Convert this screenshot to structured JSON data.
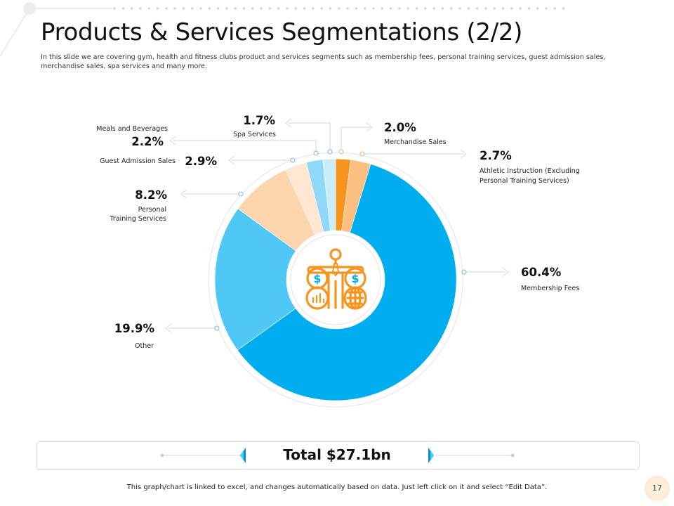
{
  "slide": {
    "title": "Products & Services Segmentations (2/2)",
    "subtitle": "In this slide we are covering gym, health and fitness clubs product and services segments such as membership fees, personal training services, guest admission sales, merchandise sales, spa services and many more.",
    "total_label": "Total $27.1bn",
    "footer_note": "This graph/chart is linked to excel, and changes automatically based on data. Just left click on it and select “Edit Data”.",
    "page_number": "17",
    "center_icon": "businessman-balance-scale-icon"
  },
  "colors": {
    "accent_blue": "#00AEEF",
    "accent_orange": "#F7941D",
    "connector": "#cfd6dc"
  },
  "chart_data": {
    "type": "pie",
    "subtype": "donut",
    "title": "Products & Services Segmentations (2/2)",
    "total": "$27.1bn",
    "start_angle_deg": 0,
    "direction": "clockwise",
    "slices": [
      {
        "name": "Merchandise Sales",
        "value": 2.0,
        "label": "2.0%",
        "color": "#F7941D"
      },
      {
        "name": "Athletic Instruction (Excluding Personal Training Services)",
        "label_lines": [
          "Athletic Instruction (Excluding",
          "Personal Training Services)"
        ],
        "value": 2.7,
        "label": "2.7%",
        "color": "#FBBF80"
      },
      {
        "name": "Membership Fees",
        "value": 60.4,
        "label": "60.4%",
        "color": "#00AEEF"
      },
      {
        "name": "Other",
        "value": 19.9,
        "label": "19.9%",
        "color": "#4FC8F5"
      },
      {
        "name": "Personal Training Services",
        "label_lines": [
          "Personal",
          "Training Services"
        ],
        "value": 8.2,
        "label": "8.2%",
        "color": "#FDD5AD"
      },
      {
        "name": "Guest Admission Sales",
        "value": 2.9,
        "label": "2.9%",
        "color": "#FDE7D3"
      },
      {
        "name": "Meals and Beverages",
        "value": 2.2,
        "label": "2.2%",
        "color": "#8FD8F7"
      },
      {
        "name": "Spa Services",
        "value": 1.7,
        "label": "1.7%",
        "color": "#C9ECFB"
      }
    ]
  }
}
